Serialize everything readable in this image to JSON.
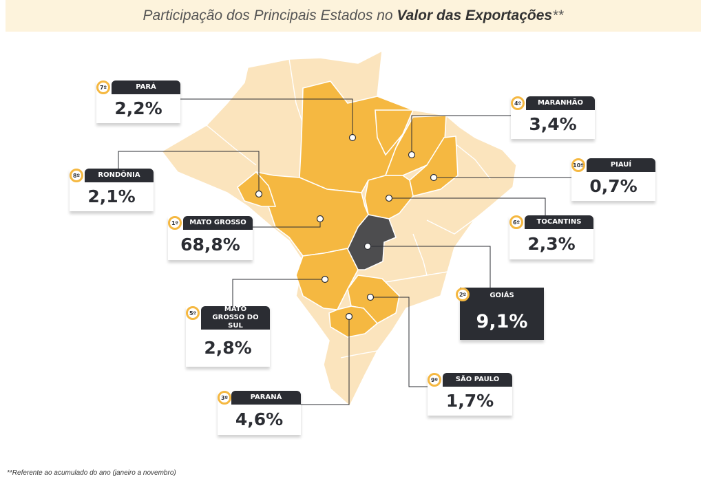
{
  "title": {
    "prefix": "Participação dos Principais Estados no",
    "emphasis": "Valor das Exportações",
    "suffix": "**"
  },
  "colors": {
    "highlight": "#f5b841",
    "base": "#fbe4bd",
    "top": "#4d4d4f",
    "card_header": "#2b2d33"
  },
  "chart_data": {
    "type": "map",
    "title": "Participação dos Principais Estados no Valor das Exportações**",
    "unit": "%",
    "states": [
      {
        "rank": "1º",
        "name": "MATO GROSSO",
        "value": 68.8,
        "label": "68,8%"
      },
      {
        "rank": "2º",
        "name": "GOIÁS",
        "value": 9.1,
        "label": "9,1%"
      },
      {
        "rank": "3º",
        "name": "PARANÁ",
        "value": 4.6,
        "label": "4,6%"
      },
      {
        "rank": "4º",
        "name": "MARANHÃO",
        "value": 3.4,
        "label": "3,4%"
      },
      {
        "rank": "5º",
        "name": "MATO GROSSO DO SUL",
        "value": 2.8,
        "label": "2,8%"
      },
      {
        "rank": "6º",
        "name": "TOCANTINS",
        "value": 2.3,
        "label": "2,3%"
      },
      {
        "rank": "7º",
        "name": "PARÁ",
        "value": 2.2,
        "label": "2,2%"
      },
      {
        "rank": "8º",
        "name": "RONDÔNIA",
        "value": 2.1,
        "label": "2,1%"
      },
      {
        "rank": "9º",
        "name": "SÃO PAULO",
        "value": 1.7,
        "label": "1,7%"
      },
      {
        "rank": "10º",
        "name": "PIAUÍ",
        "value": 0.7,
        "label": "0,7%"
      }
    ]
  },
  "footnote": "**Referente ao acumulado do ano (janeiro a novembro)"
}
